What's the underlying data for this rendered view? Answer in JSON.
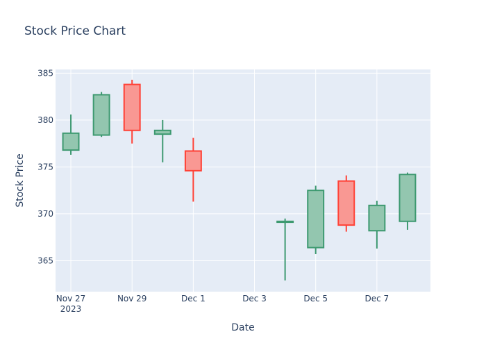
{
  "chart_data": {
    "type": "candlestick",
    "title": "Stock Price Chart",
    "xlabel": "Date",
    "ylabel": "Stock Price",
    "ylim": [
      361.7,
      385.4
    ],
    "xlim": [
      "2023-11-26 12:00",
      "2023-12-08 18:00"
    ],
    "grid": true,
    "legend": "none",
    "x_ticks": [
      {
        "date": "2023-11-27",
        "label": "Nov 27",
        "sublabel": "2023"
      },
      {
        "date": "2023-11-29",
        "label": "Nov 29",
        "sublabel": ""
      },
      {
        "date": "2023-12-01",
        "label": "Dec 1",
        "sublabel": ""
      },
      {
        "date": "2023-12-03",
        "label": "Dec 3",
        "sublabel": ""
      },
      {
        "date": "2023-12-05",
        "label": "Dec 5",
        "sublabel": ""
      },
      {
        "date": "2023-12-07",
        "label": "Dec 7",
        "sublabel": ""
      }
    ],
    "y_ticks": [
      365,
      370,
      375,
      380,
      385
    ],
    "colors": {
      "increasing_line": "#3D9970",
      "increasing_fill": "#93C6AF",
      "decreasing_line": "#FF4136",
      "decreasing_fill": "#F99893",
      "plot_bg": "#E5ECF6",
      "grid": "#ffffff",
      "text": "#2a3f5f"
    },
    "candles": [
      {
        "date": "2023-11-27",
        "open": 376.8,
        "high": 380.6,
        "low": 376.3,
        "close": 378.6
      },
      {
        "date": "2023-11-28",
        "open": 378.4,
        "high": 383.0,
        "low": 378.2,
        "close": 382.7
      },
      {
        "date": "2023-11-29",
        "open": 383.8,
        "high": 384.3,
        "low": 377.5,
        "close": 378.9
      },
      {
        "date": "2023-11-30",
        "open": 378.5,
        "high": 380.0,
        "low": 375.5,
        "close": 378.9
      },
      {
        "date": "2023-12-01",
        "open": 376.7,
        "high": 378.1,
        "low": 371.3,
        "close": 374.6
      },
      {
        "date": "2023-12-04",
        "open": 369.1,
        "high": 369.5,
        "low": 362.9,
        "close": 369.2
      },
      {
        "date": "2023-12-05",
        "open": 366.4,
        "high": 373.0,
        "low": 365.7,
        "close": 372.5
      },
      {
        "date": "2023-12-06",
        "open": 373.5,
        "high": 374.1,
        "low": 368.1,
        "close": 368.8
      },
      {
        "date": "2023-12-07",
        "open": 368.2,
        "high": 371.4,
        "low": 366.3,
        "close": 370.9
      },
      {
        "date": "2023-12-08",
        "open": 369.2,
        "high": 374.4,
        "low": 368.3,
        "close": 374.2
      }
    ]
  }
}
